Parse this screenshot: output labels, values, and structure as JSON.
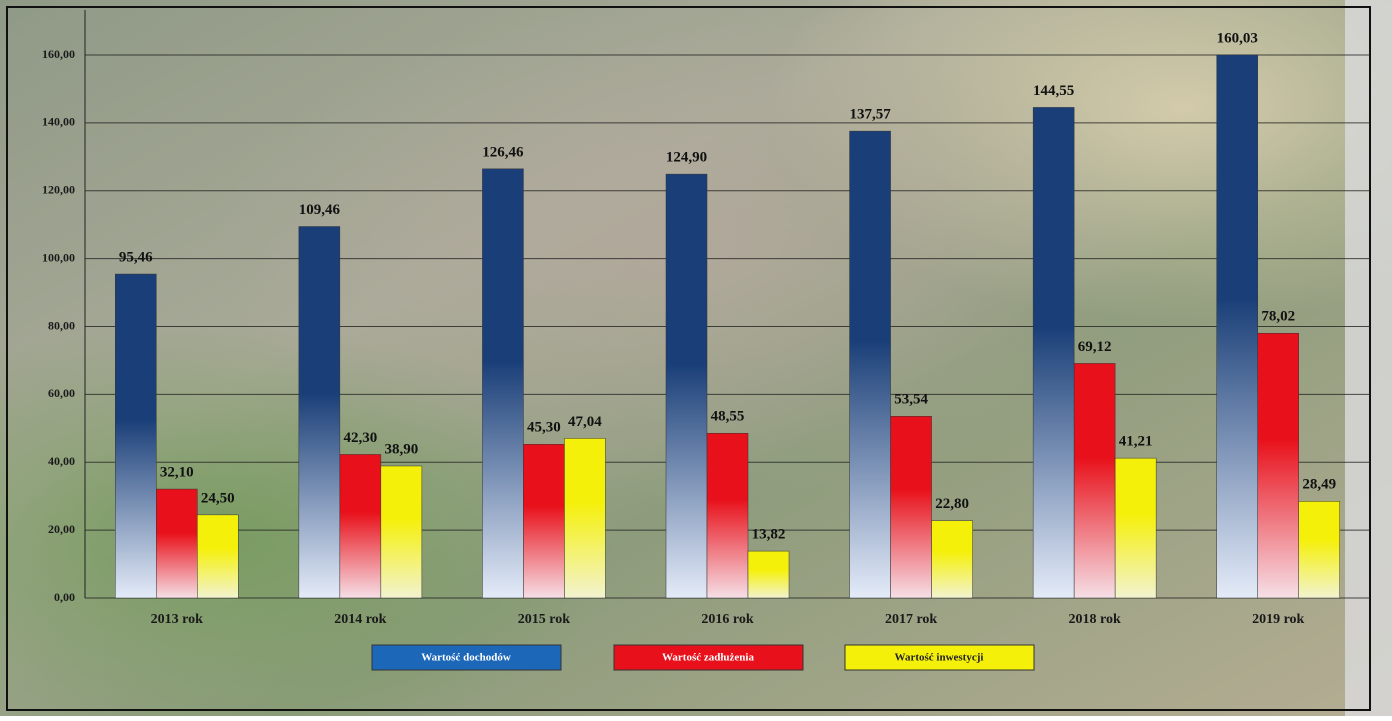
{
  "chart_data": {
    "type": "bar",
    "categories": [
      "2013 rok",
      "2014 rok",
      "2015 rok",
      "2016 rok",
      "2017 rok",
      "2018 rok",
      "2019 rok"
    ],
    "series": [
      {
        "name": "Wartość dochodów",
        "color": "#1d67b8",
        "values": [
          95.46,
          109.46,
          126.46,
          124.9,
          137.57,
          144.55,
          160.03
        ],
        "value_labels": [
          "95,46",
          "109,46",
          "126,46",
          "124,90",
          "137,57",
          "144,55",
          "160,03"
        ]
      },
      {
        "name": "Wartość zadłużenia",
        "color": "#e8101a",
        "values": [
          32.1,
          42.3,
          45.3,
          48.55,
          53.54,
          69.12,
          78.02
        ],
        "value_labels": [
          "32,10",
          "42,30",
          "45,30",
          "48,55",
          "53,54",
          "69,12",
          "78,02"
        ]
      },
      {
        "name": "Wartość inwestycji",
        "color": "#f5f00a",
        "values": [
          24.5,
          38.9,
          47.04,
          13.82,
          22.8,
          41.21,
          28.49
        ],
        "value_labels": [
          "24,50",
          "38,90",
          "47,04",
          "13,82",
          "22,80",
          "41,21",
          "28,49"
        ]
      }
    ],
    "ylim": [
      0,
      160
    ],
    "yticks": [
      {
        "value": 0,
        "label": "0,00"
      },
      {
        "value": 20,
        "label": "20,00"
      },
      {
        "value": 40,
        "label": "40,00"
      },
      {
        "value": 60,
        "label": "60,00"
      },
      {
        "value": 80,
        "label": "80,00"
      },
      {
        "value": 100,
        "label": "100,00"
      },
      {
        "value": 120,
        "label": "120,00"
      },
      {
        "value": 140,
        "label": "140,00"
      },
      {
        "value": 160,
        "label": "160,00"
      }
    ],
    "grid": true
  }
}
